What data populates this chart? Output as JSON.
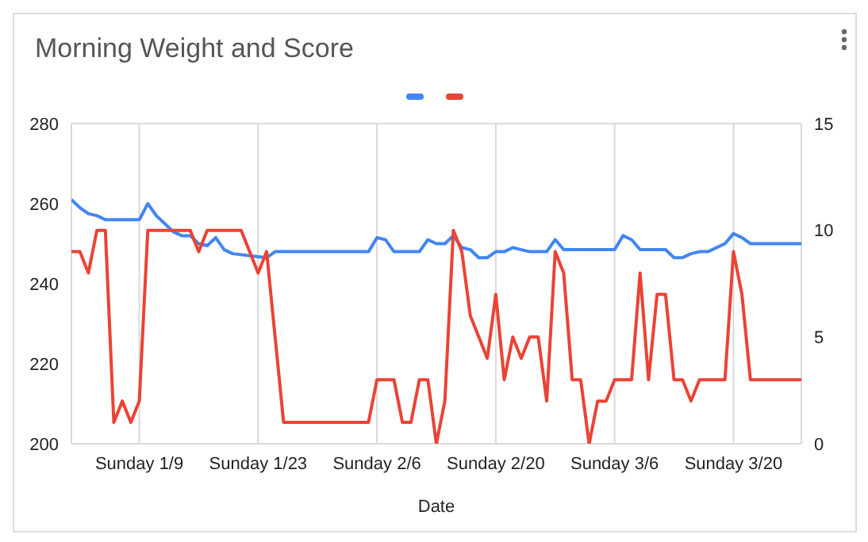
{
  "chart_data": {
    "type": "line",
    "title": "Morning Weight and Score",
    "xlabel": "Date",
    "xlim": [
      "--01-01",
      "--03-28"
    ],
    "xticks": [
      {
        "value": "--01-09",
        "label": "Sunday 1/9"
      },
      {
        "value": "--01-23",
        "label": "Sunday 1/23"
      },
      {
        "value": "--02-06",
        "label": "Sunday 2/6"
      },
      {
        "value": "--02-20",
        "label": "Sunday 2/20"
      },
      {
        "value": "--03-06",
        "label": "Sunday 3/6"
      },
      {
        "value": "--03-20",
        "label": "Sunday 3/20"
      }
    ],
    "ylim": [
      200,
      280
    ],
    "yticks": [
      200,
      220,
      240,
      260,
      280
    ],
    "y2lim": [
      0,
      15
    ],
    "y2ticks": [
      0,
      5,
      10,
      15
    ],
    "grid": true,
    "marker": "none",
    "line_style": "solid",
    "series": [
      {
        "color": "#4285f4",
        "x": [
          "--01-01",
          "--01-02",
          "--01-03",
          "--01-04",
          "--01-05",
          "--01-09",
          "--01-10",
          "--01-11",
          "--01-12",
          "--01-13",
          "--01-14",
          "--01-15",
          "--01-16",
          "--01-17",
          "--01-18",
          "--01-19",
          "--01-20",
          "--01-24",
          "--01-25",
          "--02-05",
          "--02-06",
          "--02-07",
          "--02-08",
          "--02-11",
          "--02-12",
          "--02-13",
          "--02-14",
          "--02-15",
          "--02-16",
          "--02-17",
          "--02-18",
          "--02-19",
          "--02-20",
          "--02-21",
          "--02-22",
          "--02-23",
          "--02-24",
          "--02-26",
          "--02-27",
          "--02-28",
          "--03-06",
          "--03-07",
          "--03-08",
          "--03-09",
          "--03-12",
          "--03-13",
          "--03-14",
          "--03-15",
          "--03-16",
          "--03-17",
          "--03-18",
          "--03-19",
          "--03-20",
          "--03-21",
          "--03-22",
          "--03-28"
        ],
        "values": [
          261,
          259,
          257.5,
          257,
          256,
          256,
          260,
          257,
          255,
          253,
          252,
          252,
          250,
          249.5,
          251.5,
          248.5,
          247.5,
          246.5,
          248,
          248,
          251.5,
          251,
          248,
          248,
          251,
          250,
          250,
          252,
          249,
          248.5,
          246.5,
          246.5,
          248,
          248,
          249,
          248.5,
          248,
          248,
          251,
          248.5,
          248.5,
          252,
          251,
          248.5,
          248.5,
          246.5,
          246.5,
          247.5,
          248,
          248,
          249,
          250,
          252.5,
          251.5,
          250,
          250
        ]
      },
      {
        "color": "#ea4335",
        "axis": "y2",
        "x": [
          "--01-01",
          "--01-02",
          "--01-03",
          "--01-04",
          "--01-05",
          "--01-06",
          "--01-07",
          "--01-08",
          "--01-09",
          "--01-10",
          "--01-15",
          "--01-16",
          "--01-17",
          "--01-21",
          "--01-22",
          "--01-23",
          "--01-24",
          "--01-26",
          "--02-05",
          "--02-06",
          "--02-08",
          "--02-09",
          "--02-10",
          "--02-11",
          "--02-12",
          "--02-13",
          "--02-14",
          "--02-15",
          "--02-16",
          "--02-17",
          "--02-18",
          "--02-19",
          "--02-20",
          "--02-21",
          "--02-22",
          "--02-23",
          "--02-24",
          "--02-25",
          "--02-26",
          "--02-27",
          "--02-28",
          "--03-01",
          "--03-02",
          "--03-03",
          "--03-04",
          "--03-05",
          "--03-06",
          "--03-08",
          "--03-09",
          "--03-10",
          "--03-11",
          "--03-12",
          "--03-13",
          "--03-14",
          "--03-15",
          "--03-16",
          "--03-19",
          "--03-20",
          "--03-21",
          "--03-22",
          "--03-28"
        ],
        "values": [
          9,
          9,
          8,
          10,
          10,
          1,
          2,
          1,
          2,
          10,
          10,
          9,
          10,
          10,
          9,
          8,
          9,
          1,
          1,
          3,
          3,
          1,
          1,
          3,
          3,
          0,
          2,
          10,
          9,
          6,
          5,
          4,
          7,
          3,
          5,
          4,
          5,
          5,
          2,
          9,
          8,
          3,
          3,
          0,
          2,
          2,
          3,
          3,
          8,
          3,
          7,
          7,
          3,
          3,
          2,
          3,
          3,
          9,
          7,
          3,
          3
        ]
      }
    ]
  }
}
